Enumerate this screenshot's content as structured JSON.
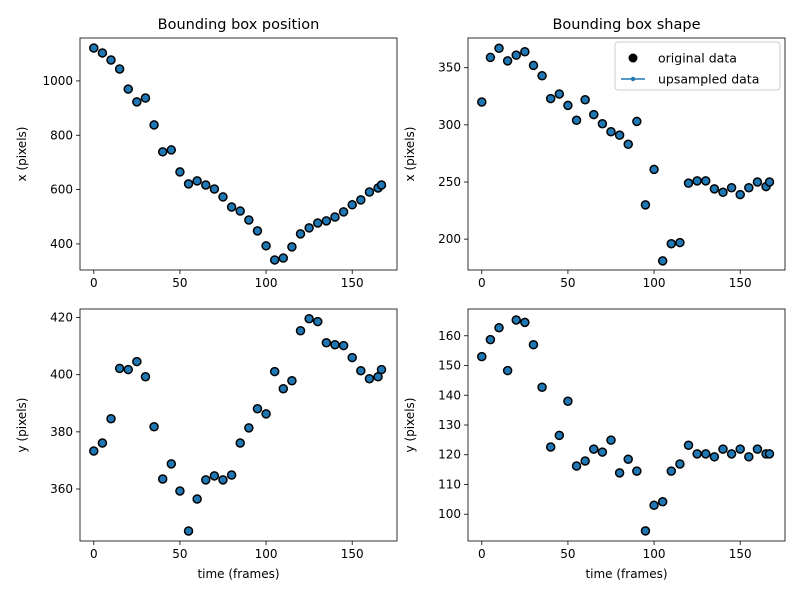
{
  "chart_data": [
    {
      "type": "scatter",
      "title": "Bounding box position",
      "xlabel": "",
      "ylabel": "x (pixels)",
      "xlim": [
        -8,
        176
      ],
      "ylim": [
        304,
        1158
      ],
      "xticks": [
        0,
        50,
        100,
        150
      ],
      "yticks": [
        400,
        600,
        800,
        1000
      ],
      "x": [
        0,
        5,
        10,
        15,
        20,
        25,
        30,
        35,
        40,
        45,
        50,
        55,
        60,
        65,
        70,
        75,
        80,
        85,
        90,
        95,
        100,
        105,
        110,
        115,
        120,
        125,
        130,
        135,
        140,
        145,
        150,
        155,
        160,
        165,
        167
      ],
      "y": [
        1121,
        1103,
        1077,
        1044,
        970,
        923,
        937,
        838,
        739,
        746,
        665,
        621,
        632,
        617,
        602,
        573,
        536,
        521,
        488,
        448,
        393,
        341,
        348,
        389,
        437,
        459,
        477,
        485,
        499,
        518,
        544,
        562,
        591,
        606,
        617
      ],
      "marker_color": "#1f77b4",
      "edge_color": "#000000"
    },
    {
      "type": "scatter",
      "title": "Bounding box shape",
      "xlabel": "",
      "ylabel": "x (pixels)",
      "xlim": [
        -8,
        176
      ],
      "ylim": [
        173,
        376
      ],
      "xticks": [
        0,
        50,
        100,
        150
      ],
      "yticks": [
        200,
        250,
        300,
        350
      ],
      "x": [
        0,
        5,
        10,
        15,
        20,
        25,
        30,
        35,
        40,
        45,
        50,
        55,
        60,
        65,
        70,
        75,
        80,
        85,
        90,
        95,
        100,
        105,
        110,
        115,
        120,
        125,
        130,
        135,
        140,
        145,
        150,
        155,
        160,
        165,
        167
      ],
      "y": [
        320,
        359,
        367,
        356,
        361,
        364,
        352,
        343,
        323,
        327,
        317,
        304,
        322,
        309,
        301,
        294,
        291,
        283,
        303,
        230,
        261,
        181,
        196,
        197,
        249,
        251,
        251,
        244,
        241,
        245,
        239,
        245,
        250,
        246,
        250
      ],
      "marker_color": "#1f77b4",
      "edge_color": "#000000",
      "legend": {
        "placement": "upper right",
        "entries": [
          {
            "label": "original data",
            "style": "black dot"
          },
          {
            "label": "upsampled data",
            "style": "line with dot",
            "color": "#1f77b4"
          }
        ]
      }
    },
    {
      "type": "scatter",
      "title": "",
      "xlabel": "time (frames)",
      "ylabel": "y (pixels)",
      "xlim": [
        -8,
        176
      ],
      "ylim": [
        341.8,
        423
      ],
      "xticks": [
        0,
        50,
        100,
        150
      ],
      "yticks": [
        360,
        380,
        400,
        420
      ],
      "x": [
        0,
        5,
        10,
        15,
        20,
        25,
        30,
        35,
        40,
        45,
        50,
        55,
        60,
        65,
        70,
        75,
        80,
        85,
        90,
        95,
        100,
        105,
        110,
        115,
        120,
        125,
        130,
        135,
        140,
        145,
        150,
        155,
        160,
        165,
        167
      ],
      "y": [
        373.3,
        376.1,
        384.6,
        402.2,
        401.8,
        404.6,
        399.3,
        381.8,
        363.5,
        368.8,
        359.3,
        345.3,
        356.5,
        363.2,
        364.6,
        363.2,
        364.9,
        376.1,
        381.4,
        388.1,
        386.3,
        401.1,
        395.1,
        397.9,
        415.4,
        419.6,
        418.6,
        411.2,
        410.5,
        410.2,
        406,
        401.4,
        398.6,
        399.3,
        401.8
      ],
      "marker_color": "#1f77b4",
      "edge_color": "#000000"
    },
    {
      "type": "scatter",
      "title": "",
      "xlabel": "time (frames)",
      "ylabel": "y (pixels)",
      "xlim": [
        -8,
        176
      ],
      "ylim": [
        91,
        169
      ],
      "xticks": [
        0,
        50,
        100,
        150
      ],
      "yticks": [
        100,
        110,
        120,
        130,
        140,
        150,
        160
      ],
      "x": [
        0,
        5,
        10,
        15,
        20,
        25,
        30,
        35,
        40,
        45,
        50,
        55,
        60,
        65,
        70,
        75,
        80,
        85,
        90,
        95,
        100,
        105,
        110,
        115,
        120,
        125,
        130,
        135,
        140,
        145,
        150,
        155,
        160,
        165,
        167
      ],
      "y": [
        153,
        158.7,
        162.7,
        148.3,
        165.3,
        164.5,
        157,
        142.7,
        122.6,
        126.5,
        138,
        116.2,
        117.9,
        121.9,
        120.9,
        124.9,
        113.9,
        118.5,
        114.5,
        94.4,
        103,
        104.2,
        114.5,
        116.9,
        123.2,
        120.3,
        120.3,
        119.3,
        121.9,
        120.3,
        121.9,
        119.3,
        121.9,
        120.3,
        120.3
      ],
      "marker_color": "#1f77b4",
      "edge_color": "#000000"
    }
  ]
}
